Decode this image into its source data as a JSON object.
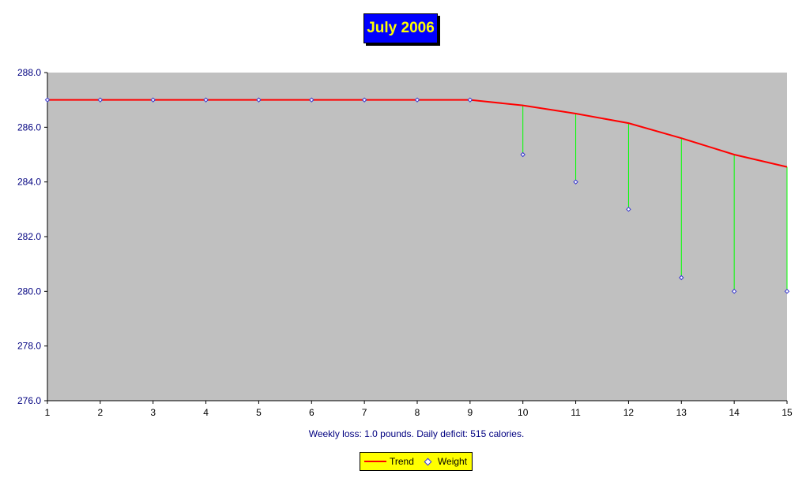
{
  "chart_data": {
    "type": "line",
    "title": "July 2006",
    "subtitle": "Weekly loss: 1.0 pounds.  Daily deficit: 515 calories.",
    "x": [
      1,
      2,
      3,
      4,
      5,
      6,
      7,
      8,
      9,
      10,
      11,
      12,
      13,
      14,
      15
    ],
    "xlim": [
      1,
      15
    ],
    "ylim": [
      276,
      288
    ],
    "yticks": [
      "276.0",
      "278.0",
      "280.0",
      "282.0",
      "284.0",
      "286.0",
      "288.0"
    ],
    "series": [
      {
        "name": "Trend",
        "values": [
          287.0,
          287.0,
          287.0,
          287.0,
          287.0,
          287.0,
          287.0,
          287.0,
          287.0,
          286.8,
          286.5,
          286.15,
          285.6,
          285.0,
          284.55
        ]
      },
      {
        "name": "Weight",
        "values": [
          287.0,
          287.0,
          287.0,
          287.0,
          287.0,
          287.0,
          287.0,
          287.0,
          287.0,
          285.0,
          284.0,
          283.0,
          280.5,
          280.0,
          280.0
        ]
      }
    ],
    "grid": false,
    "legend": "bottom-center",
    "colors": {
      "plot_bg": "#c0c0c0",
      "trend": "#ff0000",
      "weight": "#3333cc",
      "drop_line": "#00ff00",
      "axis_text": "#000080"
    }
  }
}
